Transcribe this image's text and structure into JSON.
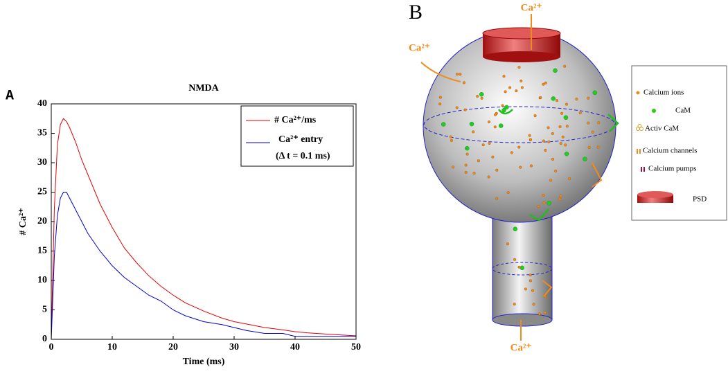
{
  "chart_data": {
    "type": "line",
    "panel_label": "A",
    "title": "NMDA",
    "xlabel": "Time (ms)",
    "ylabel": "# Ca²⁺",
    "x": [
      0,
      0.5,
      1,
      1.5,
      2,
      2.5,
      3,
      4,
      5,
      6,
      7,
      8,
      10,
      12,
      14,
      16,
      18,
      20,
      22,
      25,
      28,
      30,
      32,
      35,
      38,
      40,
      42,
      45,
      48,
      50
    ],
    "series": [
      {
        "name": "# Ca²⁺/ms",
        "color": "#e00000",
        "values": [
          0,
          22,
          33,
          36.5,
          37.5,
          37,
          36,
          33.5,
          30.5,
          28,
          25.5,
          23,
          19,
          15.5,
          13,
          10.8,
          9,
          7.5,
          6.2,
          4.8,
          3.6,
          3,
          2.6,
          2,
          1.6,
          1.3,
          1.1,
          0.9,
          0.7,
          0.6
        ]
      },
      {
        "name": "Ca²⁺ entry",
        "color": "#0000cc",
        "values": [
          0,
          14,
          21,
          24,
          25,
          25,
          24,
          22,
          20,
          18,
          16.5,
          15,
          12.5,
          10.5,
          9,
          7.5,
          6.5,
          5,
          4,
          3,
          2.5,
          2,
          1.5,
          1,
          1,
          0.5,
          0.5,
          0.5,
          0.5,
          0.5
        ]
      }
    ],
    "legend_note": "(Δ t = 0.1 ms)",
    "xlim": [
      0,
      50
    ],
    "xticks": [
      0,
      10,
      20,
      30,
      40,
      50
    ],
    "ylim": [
      0,
      40
    ],
    "yticks": [
      0,
      5,
      10,
      15,
      20,
      25,
      30,
      35,
      40
    ]
  },
  "diagram": {
    "panel_label": "B",
    "flux_labels": [
      "Ca²⁺",
      "Ca²⁺",
      "Ca²⁺"
    ],
    "legend": [
      "Calcium ions",
      "CaM",
      "Activ CaM",
      "Calcium channels",
      "Calcium pumps",
      "PSD"
    ]
  }
}
